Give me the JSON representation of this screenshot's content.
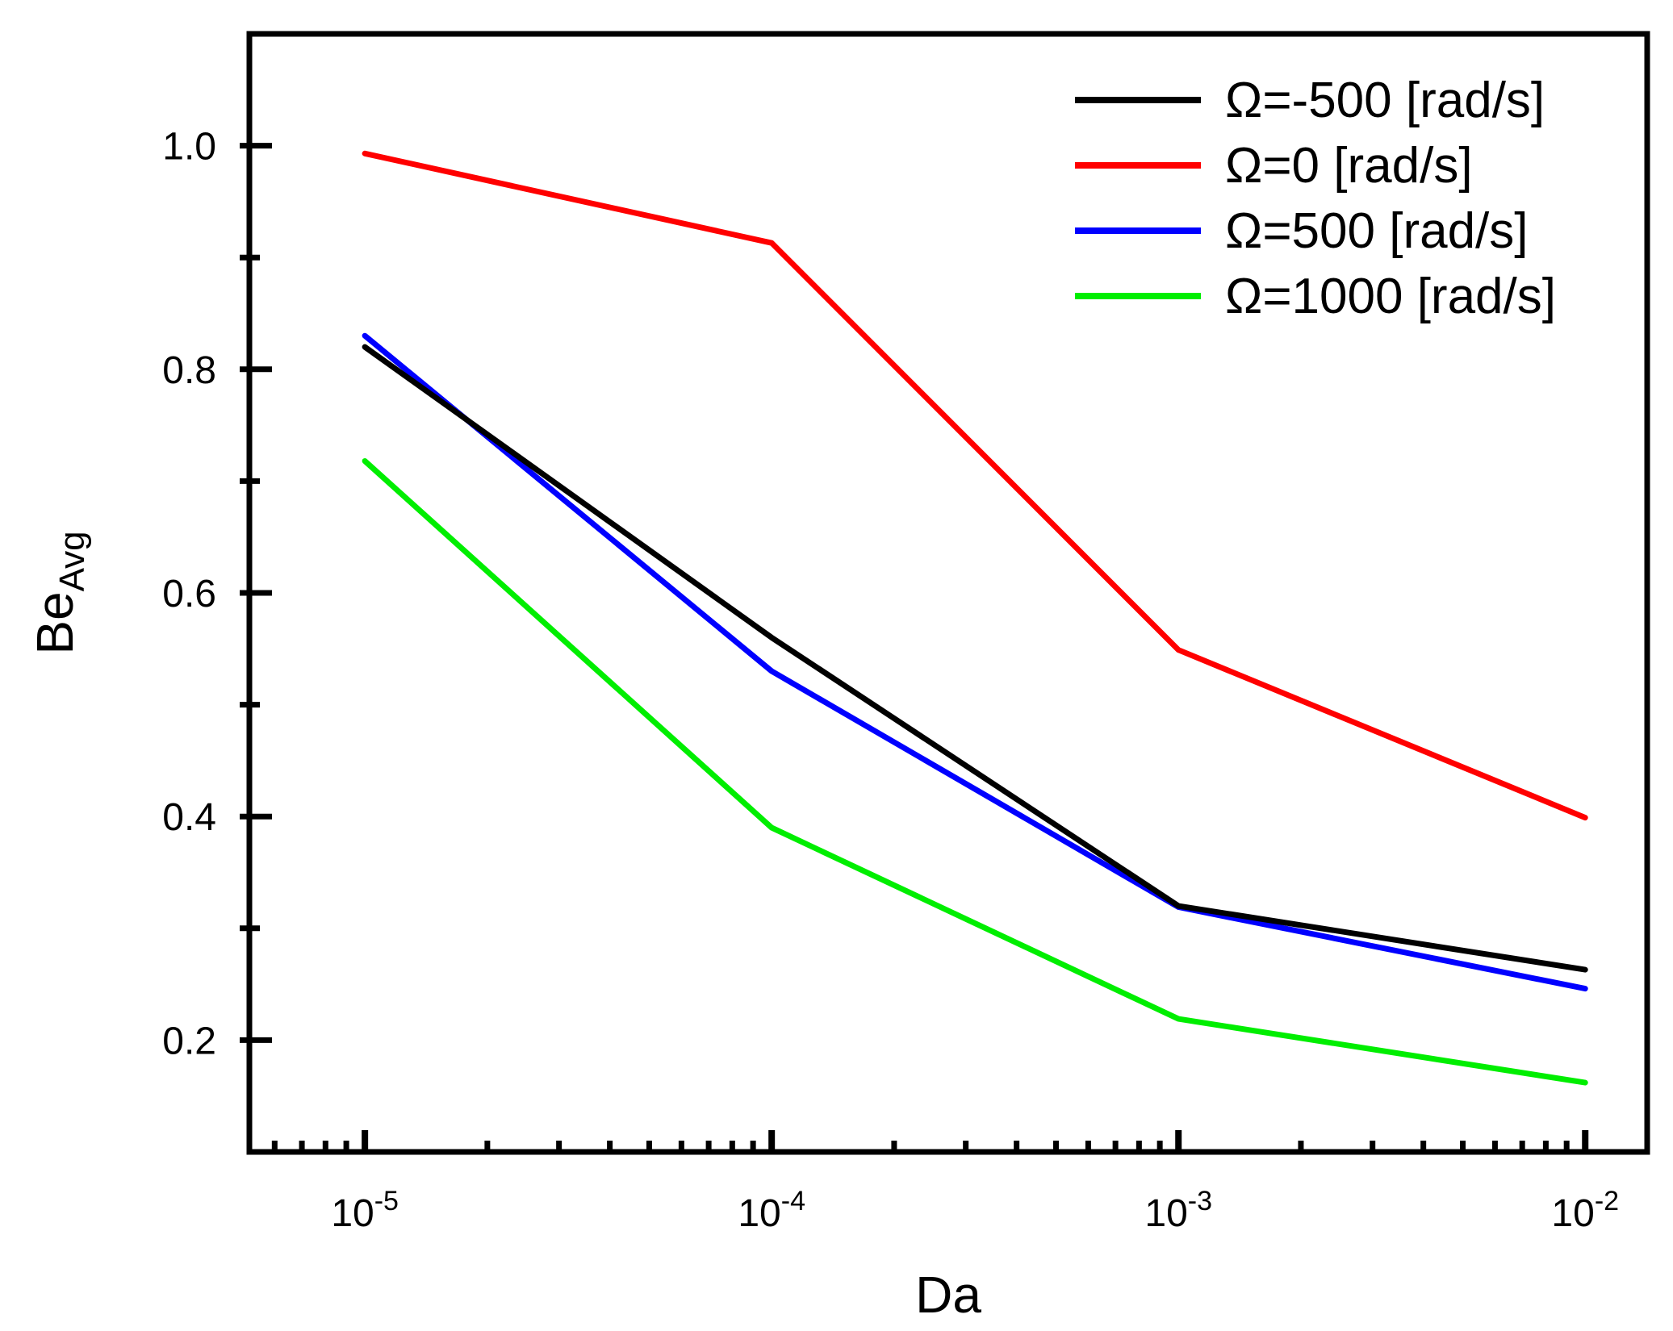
{
  "chart_data": {
    "type": "line",
    "title": "",
    "xlabel": "Da",
    "ylabel": {
      "main": "Be",
      "sub": "Avg"
    },
    "xscale": "log",
    "x": [
      1e-05,
      0.0001,
      0.001,
      0.01
    ],
    "x_tick_labels": [
      {
        "base": "10",
        "exp": "-5"
      },
      {
        "base": "10",
        "exp": "-4"
      },
      {
        "base": "10",
        "exp": "-3"
      },
      {
        "base": "10",
        "exp": "-2"
      }
    ],
    "xlim": [
      5.2e-06,
      0.0142
    ],
    "ylim": [
      0.1,
      1.1
    ],
    "y_ticks": [
      0.2,
      0.4,
      0.6,
      0.8,
      1.0
    ],
    "y_tick_labels": [
      "0.2",
      "0.4",
      "0.6",
      "0.8",
      "1.0"
    ],
    "series": [
      {
        "name": "Ω=-500 [rad/s]",
        "color": "#000000",
        "values": [
          0.82,
          0.56,
          0.32,
          0.263
        ]
      },
      {
        "name": "Ω=0 [rad/s]",
        "color": "#ff0000",
        "values": [
          0.993,
          0.913,
          0.549,
          0.399
        ]
      },
      {
        "name": "Ω=500 [rad/s]",
        "color": "#0000ff",
        "values": [
          0.83,
          0.53,
          0.319,
          0.246
        ]
      },
      {
        "name": "Ω=1000 [rad/s]",
        "color": "#00ee00",
        "values": [
          0.718,
          0.39,
          0.219,
          0.162
        ]
      }
    ],
    "legend_position": "top-right",
    "grid": false
  }
}
